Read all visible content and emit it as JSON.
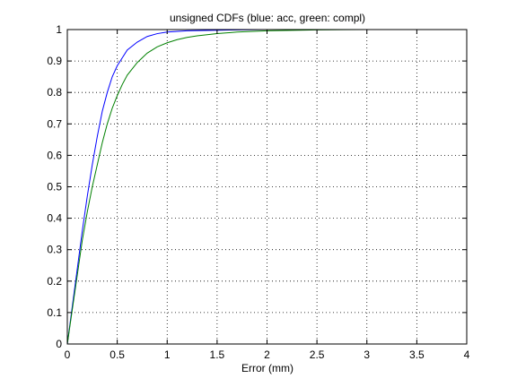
{
  "chart_data": {
    "type": "line",
    "title": "unsigned CDFs (blue: acc, green: compl)",
    "xlabel": "Error (mm)",
    "ylabel": "",
    "xlim": [
      0,
      4
    ],
    "ylim": [
      0,
      1
    ],
    "grid": true,
    "x_ticks": [
      "0",
      "0.5",
      "1",
      "1.5",
      "2",
      "2.5",
      "3",
      "3.5",
      "4"
    ],
    "y_ticks": [
      "0",
      "0.1",
      "0.2",
      "0.3",
      "0.4",
      "0.5",
      "0.6",
      "0.7",
      "0.8",
      "0.9",
      "1"
    ],
    "series": [
      {
        "color": "#0000ff",
        "x": [
          0,
          0.05,
          0.1,
          0.15,
          0.2,
          0.25,
          0.3,
          0.35,
          0.4,
          0.45,
          0.5,
          0.55,
          0.6,
          0.7,
          0.8,
          0.9,
          1.0,
          1.2,
          1.5,
          2.0,
          2.5
        ],
        "y": [
          0.0,
          0.12,
          0.24,
          0.36,
          0.47,
          0.57,
          0.66,
          0.74,
          0.8,
          0.85,
          0.885,
          0.91,
          0.935,
          0.96,
          0.978,
          0.987,
          0.992,
          0.996,
          0.998,
          1.0,
          1.0
        ]
      },
      {
        "color": "#008000",
        "x": [
          0,
          0.05,
          0.1,
          0.15,
          0.2,
          0.25,
          0.3,
          0.35,
          0.4,
          0.45,
          0.5,
          0.55,
          0.6,
          0.7,
          0.8,
          0.9,
          1.0,
          1.1,
          1.2,
          1.3,
          1.5,
          1.7,
          2.0,
          2.5,
          3.0,
          3.5,
          4.0
        ],
        "y": [
          0.0,
          0.11,
          0.22,
          0.33,
          0.42,
          0.5,
          0.57,
          0.64,
          0.7,
          0.75,
          0.79,
          0.825,
          0.855,
          0.895,
          0.925,
          0.945,
          0.958,
          0.968,
          0.975,
          0.98,
          0.987,
          0.992,
          0.996,
          0.999,
          1.0,
          1.0,
          1.0
        ]
      }
    ]
  }
}
